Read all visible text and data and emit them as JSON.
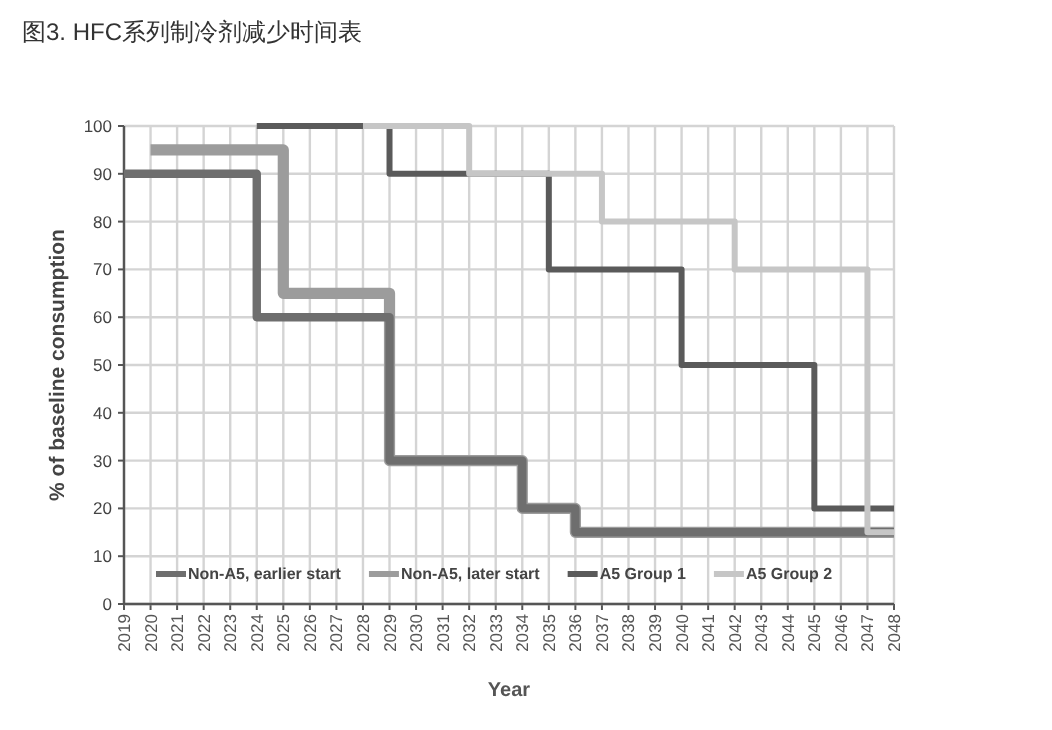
{
  "chart_data": {
    "type": "step",
    "title": "图3. HFC系列制冷剂减少时间表",
    "xlabel": "Year",
    "ylabel": "% of baseline consumption",
    "xlim": [
      2019,
      2048
    ],
    "ylim": [
      0,
      100
    ],
    "xticks": [
      2019,
      2020,
      2021,
      2022,
      2023,
      2024,
      2025,
      2026,
      2027,
      2028,
      2029,
      2030,
      2031,
      2032,
      2033,
      2034,
      2035,
      2036,
      2037,
      2038,
      2039,
      2040,
      2041,
      2042,
      2043,
      2044,
      2045,
      2046,
      2047,
      2048
    ],
    "yticks": [
      0,
      10,
      20,
      30,
      40,
      50,
      60,
      70,
      80,
      90,
      100
    ],
    "grid": true,
    "legend": "bottom",
    "series": [
      {
        "name": "Non-A5, earlier start",
        "color": "#6e6e6e",
        "x": [
          2019,
          2024,
          2029,
          2034,
          2036,
          2048
        ],
        "values": [
          90,
          60,
          30,
          20,
          15,
          15
        ]
      },
      {
        "name": "Non-A5, later start",
        "color": "#9c9c9c",
        "x": [
          2020,
          2025,
          2029,
          2034,
          2036,
          2048
        ],
        "values": [
          95,
          65,
          30,
          20,
          15,
          15
        ]
      },
      {
        "name": "A5 Group 1",
        "color": "#5a5a5a",
        "x": [
          2024,
          2029,
          2035,
          2040,
          2045,
          2048
        ],
        "values": [
          100,
          90,
          70,
          50,
          20,
          20
        ]
      },
      {
        "name": "A5 Group 2",
        "color": "#c6c6c6",
        "x": [
          2028,
          2032,
          2037,
          2042,
          2047,
          2048
        ],
        "values": [
          100,
          90,
          80,
          70,
          15,
          15
        ]
      }
    ]
  }
}
